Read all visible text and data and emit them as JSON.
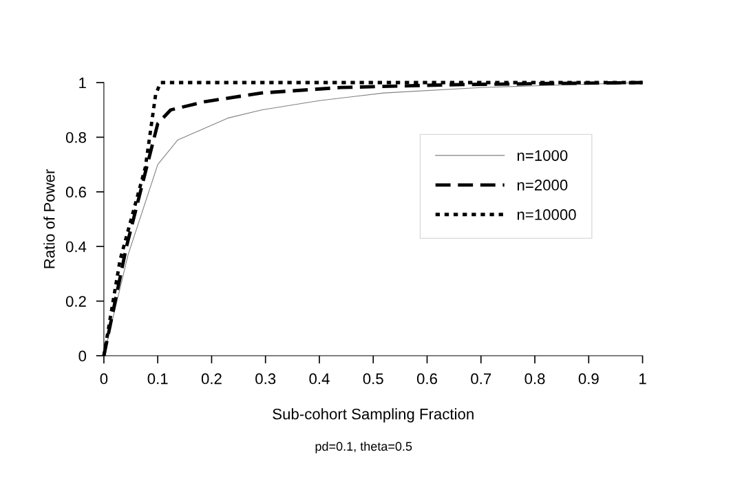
{
  "chart_data": {
    "type": "line",
    "xlabel": "Sub-cohort Sampling Fraction",
    "ylabel": "Ratio of Power",
    "annotations": [
      "pd=0.1, theta=0.5"
    ],
    "series": [
      {
        "name": "n=1000",
        "color": "#808080",
        "line_style": "solid",
        "x": [
          0,
          0.045,
          0.1,
          0.137,
          0.23,
          0.293,
          0.4,
          0.52,
          0.7,
          0.86,
          1
        ],
        "values": [
          0,
          0.37,
          0.7,
          0.79,
          0.87,
          0.9,
          0.934,
          0.962,
          0.982,
          0.992,
          1
        ]
      },
      {
        "name": "n=2000",
        "color": "#000000",
        "line_style": "dashed",
        "x": [
          0,
          0.042,
          0.1,
          0.124,
          0.187,
          0.293,
          0.44,
          0.64,
          0.84,
          1
        ],
        "values": [
          0,
          0.4,
          0.85,
          0.9,
          0.93,
          0.962,
          0.982,
          0.992,
          0.997,
          1
        ]
      },
      {
        "name": "n=10000",
        "color": "#000000",
        "line_style": "dotted",
        "x": [
          0,
          0.03,
          0.077,
          0.096,
          0.105,
          1
        ],
        "values": [
          0,
          0.35,
          0.69,
          0.955,
          1,
          1
        ]
      }
    ],
    "xlim": [
      0,
      1
    ],
    "xticks": [
      0,
      0.1,
      0.2,
      0.3,
      0.4,
      0.5,
      0.6,
      0.7,
      0.8,
      0.9,
      1
    ],
    "ylim": [
      0,
      1
    ],
    "yticks": [
      0,
      0.2,
      0.4,
      0.6,
      0.8,
      1
    ],
    "grid": false,
    "legend": "right"
  }
}
